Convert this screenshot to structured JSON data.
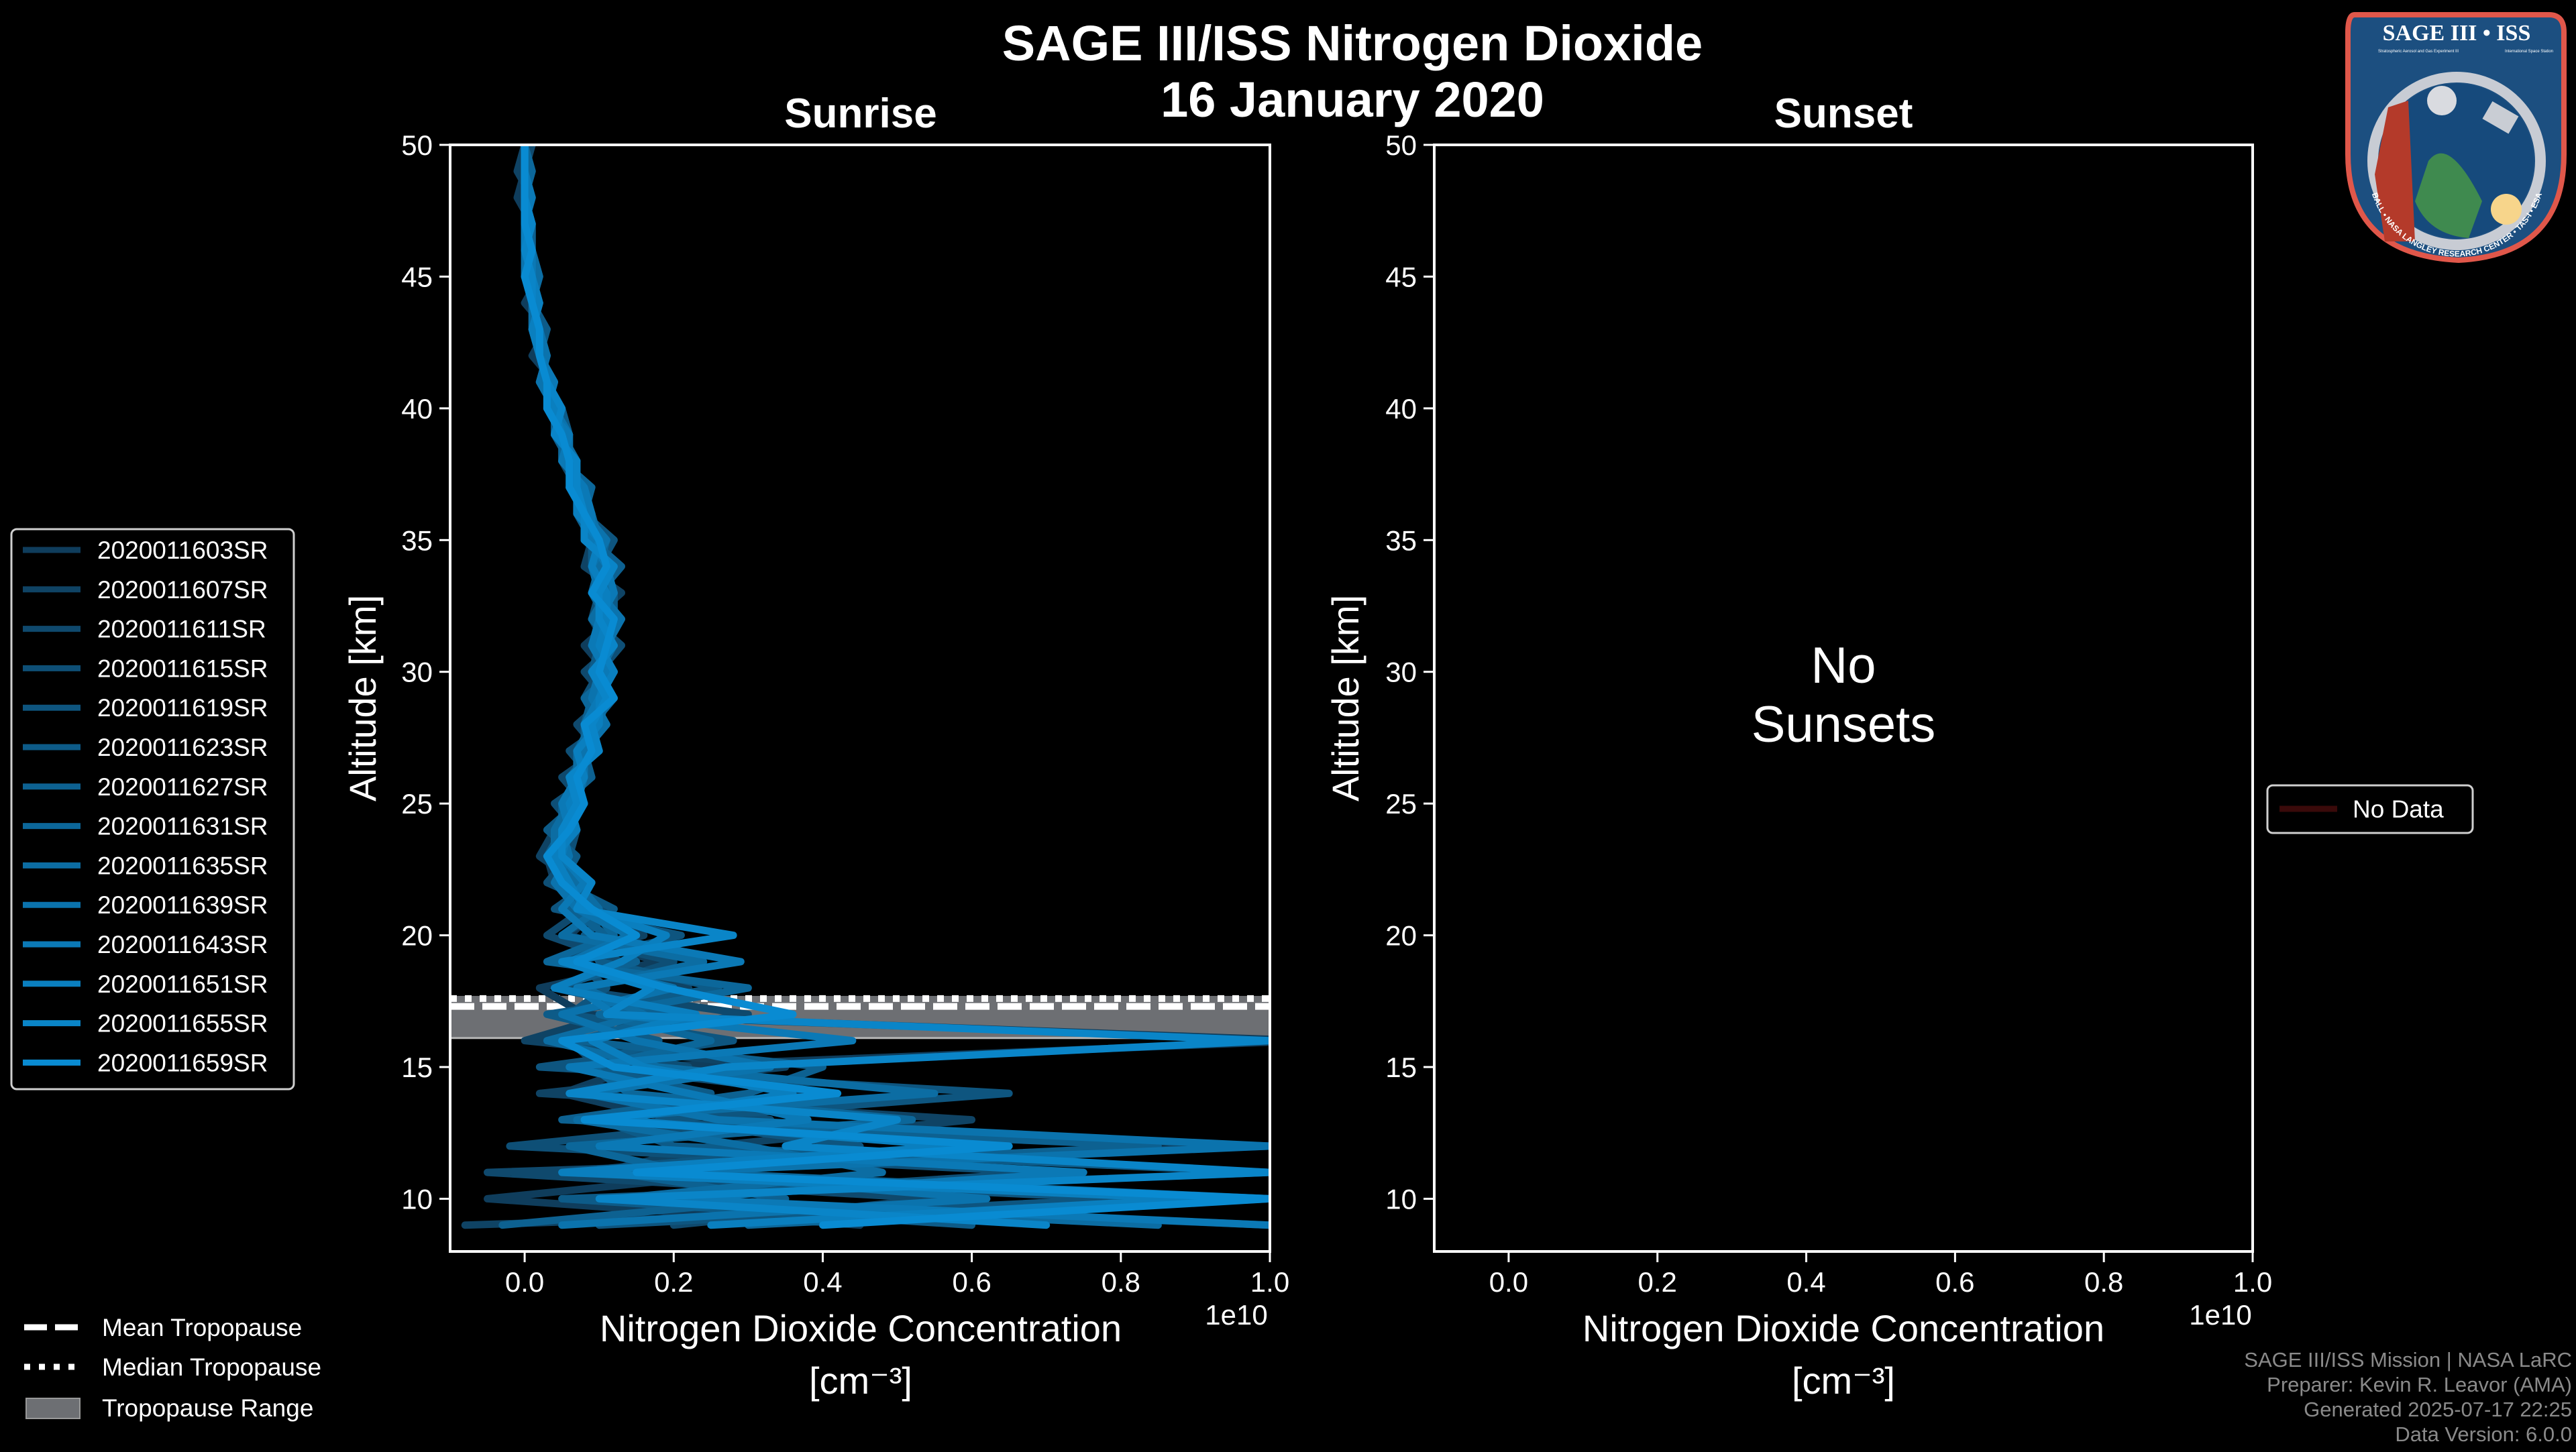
{
  "title": "SAGE III/ISS Nitrogen Dioxide",
  "date": "16 January 2020",
  "logo": {
    "main": "SAGE III • ISS",
    "sub_left": "Stratospheric Aerosol and Gas Experiment III",
    "sub_right": "International Space Station",
    "ring": "BALL • NASA LANGLEY RESEARCH CENTER • TAS-I • ESA"
  },
  "footer": [
    "SAGE III/ISS Mission | NASA LaRC",
    "Preparer: Kevin R. Leavor (AMA)",
    "Generated 2025-07-17 22:25",
    "Data Version: 6.0.0"
  ],
  "tropopause_legend": {
    "mean": "Mean Tropopause",
    "median": "Median Tropopause",
    "range": "Tropopause Range"
  },
  "chart_data": [
    {
      "type": "line",
      "title": "Sunrise",
      "xlabel": "Nitrogen Dioxide Concentration",
      "xlabel_unit": "[cm⁻³]",
      "x_offset_text": "1e10",
      "ylabel": "Altitude [km]",
      "xlim": [
        -0.1,
        1.0
      ],
      "ylim": [
        8,
        50
      ],
      "xticks": [
        "0.0",
        "0.2",
        "0.4",
        "0.6",
        "0.8",
        "1.0"
      ],
      "yticks": [
        "10",
        "15",
        "20",
        "25",
        "30",
        "35",
        "40",
        "45",
        "50"
      ],
      "grid": false,
      "legend_placement": "left-outside",
      "tropopause": {
        "mean_km": 17.3,
        "median_km": 17.6,
        "range_km": [
          16.1,
          17.7
        ]
      },
      "altitude_km": [
        9,
        10,
        11,
        12,
        13,
        14,
        15,
        16,
        17,
        18,
        19,
        20,
        21,
        22,
        23,
        24,
        25,
        26,
        27,
        28,
        29,
        30,
        31,
        32,
        33,
        34,
        35,
        36,
        37,
        38,
        39,
        40,
        41,
        42,
        43,
        44,
        45,
        46,
        47,
        48,
        49,
        50
      ],
      "series": [
        {
          "name": "2020011603SR",
          "color": "#0f3d5c",
          "values": [
            0.45,
            -0.05,
            0.3,
            0.12,
            0.2,
            0.05,
            0.15,
            1.05,
            0.08,
            0.02,
            0.18,
            0.06,
            0.1,
            0.04,
            0.03,
            0.06,
            0.05,
            0.08,
            0.07,
            0.1,
            0.09,
            0.11,
            0.08,
            0.12,
            0.1,
            0.09,
            0.1,
            0.07,
            0.08,
            0.05,
            0.06,
            0.03,
            0.04,
            0.01,
            0.03,
            0.0,
            0.02,
            0.01,
            0.01,
            -0.01,
            0.0,
            0.0
          ]
        },
        {
          "name": "2020011607SR",
          "color": "#0f4364",
          "values": [
            -0.08,
            1.0,
            0.1,
            0.25,
            0.6,
            0.02,
            0.35,
            0.0,
            0.12,
            0.22,
            0.04,
            0.16,
            0.05,
            0.07,
            0.02,
            0.04,
            0.07,
            0.06,
            0.09,
            0.08,
            0.12,
            0.1,
            0.11,
            0.09,
            0.13,
            0.08,
            0.09,
            0.09,
            0.06,
            0.07,
            0.04,
            0.05,
            0.02,
            0.03,
            0.01,
            0.02,
            0.0,
            0.01,
            0.0,
            0.01,
            -0.01,
            0.0
          ]
        },
        {
          "name": "2020011611SR",
          "color": "#0f496d",
          "values": [
            0.2,
            0.55,
            -0.05,
            1.0,
            0.08,
            0.4,
            0.1,
            0.06,
            0.3,
            0.05,
            0.13,
            0.03,
            0.08,
            0.06,
            0.05,
            0.05,
            0.08,
            0.05,
            0.1,
            0.07,
            0.11,
            0.08,
            0.12,
            0.1,
            0.11,
            0.12,
            0.08,
            0.08,
            0.07,
            0.05,
            0.06,
            0.04,
            0.02,
            0.03,
            0.02,
            0.01,
            0.01,
            0.0,
            0.01,
            0.0,
            0.0,
            0.01
          ]
        },
        {
          "name": "2020011615SR",
          "color": "#0e4f76",
          "values": [
            1.0,
            0.15,
            0.7,
            -0.02,
            0.33,
            0.1,
            0.22,
            0.04,
            0.14,
            0.09,
            0.2,
            0.05,
            0.11,
            0.03,
            0.06,
            0.07,
            0.04,
            0.09,
            0.06,
            0.11,
            0.08,
            0.1,
            0.13,
            0.09,
            0.1,
            0.11,
            0.1,
            0.07,
            0.08,
            0.06,
            0.05,
            0.04,
            0.03,
            0.02,
            0.02,
            0.01,
            0.0,
            0.01,
            0.0,
            0.0,
            0.01,
            0.0
          ]
        },
        {
          "name": "2020011619SR",
          "color": "#0e557f",
          "values": [
            0.1,
            0.8,
            0.05,
            0.45,
            0.18,
            0.65,
            0.02,
            0.28,
            0.06,
            0.11,
            0.07,
            0.21,
            0.04,
            0.09,
            0.04,
            0.06,
            0.06,
            0.07,
            0.08,
            0.09,
            0.1,
            0.12,
            0.09,
            0.11,
            0.09,
            0.1,
            0.12,
            0.08,
            0.06,
            0.07,
            0.05,
            0.03,
            0.04,
            0.02,
            0.01,
            0.02,
            0.01,
            0.0,
            0.0,
            0.01,
            0.0,
            0.0
          ]
        },
        {
          "name": "2020011623SR",
          "color": "#0d5b88",
          "values": [
            0.6,
            0.05,
            1.0,
            0.2,
            0.1,
            0.25,
            0.08,
            0.18,
            0.03,
            0.26,
            0.1,
            0.08,
            0.12,
            0.05,
            0.07,
            0.03,
            0.07,
            0.08,
            0.07,
            0.1,
            0.11,
            0.09,
            0.1,
            0.12,
            0.12,
            0.09,
            0.09,
            0.09,
            0.07,
            0.06,
            0.06,
            0.05,
            0.03,
            0.02,
            0.03,
            0.01,
            0.01,
            0.01,
            0.0,
            0.0,
            0.0,
            0.0
          ]
        },
        {
          "name": "2020011627SR",
          "color": "#0d6191",
          "values": [
            -0.03,
            0.35,
            0.12,
            0.85,
            0.05,
            0.3,
            0.4,
            0.07,
            0.2,
            0.04,
            0.15,
            0.11,
            0.06,
            0.08,
            0.03,
            0.05,
            0.05,
            0.09,
            0.08,
            0.08,
            0.09,
            0.11,
            0.11,
            0.1,
            0.1,
            0.13,
            0.09,
            0.07,
            0.07,
            0.06,
            0.04,
            0.04,
            0.02,
            0.03,
            0.01,
            0.02,
            0.0,
            0.01,
            0.01,
            0.0,
            0.0,
            0.0
          ]
        },
        {
          "name": "2020011631SR",
          "color": "#0c679a",
          "values": [
            0.3,
            1.0,
            0.22,
            0.06,
            0.52,
            0.14,
            0.09,
            0.25,
            0.1,
            0.3,
            0.03,
            0.12,
            0.09,
            0.05,
            0.05,
            0.06,
            0.08,
            0.06,
            0.09,
            0.1,
            0.08,
            0.12,
            0.1,
            0.11,
            0.09,
            0.1,
            0.11,
            0.08,
            0.09,
            0.05,
            0.05,
            0.03,
            0.03,
            0.02,
            0.02,
            0.01,
            0.01,
            0.0,
            0.0,
            0.0,
            0.01,
            0.0
          ]
        },
        {
          "name": "2020011635SR",
          "color": "#0c6da3",
          "values": [
            0.85,
            0.12,
            0.48,
            0.3,
            0.07,
            0.55,
            0.18,
            0.03,
            0.16,
            0.08,
            0.24,
            0.05,
            0.1,
            0.07,
            0.04,
            0.04,
            0.06,
            0.07,
            0.07,
            0.09,
            0.12,
            0.1,
            0.12,
            0.09,
            0.11,
            0.1,
            0.1,
            0.09,
            0.06,
            0.07,
            0.05,
            0.04,
            0.03,
            0.02,
            0.01,
            0.01,
            0.02,
            0.01,
            0.0,
            0.0,
            0.0,
            0.0
          ]
        },
        {
          "name": "2020011639SR",
          "color": "#0b73ad",
          "values": [
            0.05,
            0.62,
            0.18,
            1.0,
            0.26,
            0.08,
            0.33,
            0.15,
            0.05,
            0.2,
            0.06,
            0.14,
            0.07,
            0.04,
            0.06,
            0.05,
            0.07,
            0.08,
            0.08,
            0.11,
            0.09,
            0.1,
            0.11,
            0.13,
            0.1,
            0.09,
            0.11,
            0.08,
            0.07,
            0.06,
            0.06,
            0.04,
            0.02,
            0.03,
            0.02,
            0.01,
            0.0,
            0.0,
            0.01,
            0.0,
            0.0,
            0.0
          ]
        },
        {
          "name": "2020011643SR",
          "color": "#0b79b6",
          "values": [
            1.0,
            0.2,
            0.75,
            0.1,
            0.38,
            0.22,
            0.06,
            0.44,
            0.12,
            0.07,
            0.29,
            0.09,
            0.05,
            0.08,
            0.05,
            0.06,
            0.05,
            0.07,
            0.09,
            0.08,
            0.1,
            0.11,
            0.09,
            0.1,
            0.12,
            0.11,
            0.09,
            0.09,
            0.08,
            0.05,
            0.06,
            0.03,
            0.04,
            0.02,
            0.02,
            0.01,
            0.01,
            0.01,
            0.0,
            0.01,
            0.0,
            0.0
          ]
        },
        {
          "name": "2020011651SR",
          "color": "#0a7fbf",
          "values": [
            0.25,
            0.9,
            0.05,
            0.58,
            0.12,
            0.36,
            0.16,
            0.09,
            0.23,
            0.04,
            0.13,
            0.19,
            0.08,
            0.06,
            0.04,
            0.07,
            0.06,
            0.08,
            0.07,
            0.1,
            0.1,
            0.12,
            0.1,
            0.11,
            0.11,
            0.09,
            0.1,
            0.07,
            0.07,
            0.06,
            0.05,
            0.04,
            0.03,
            0.02,
            0.01,
            0.02,
            0.01,
            0.0,
            0.0,
            0.0,
            0.0,
            0.0
          ]
        },
        {
          "name": "2020011655SR",
          "color": "#0a85c8",
          "values": [
            0.7,
            0.1,
            1.0,
            0.35,
            0.5,
            0.06,
            0.27,
            1.0,
            0.11,
            0.17,
            0.05,
            0.28,
            0.07,
            0.09,
            0.05,
            0.05,
            0.07,
            0.06,
            0.1,
            0.09,
            0.11,
            0.09,
            0.12,
            0.1,
            0.1,
            0.12,
            0.08,
            0.08,
            0.07,
            0.07,
            0.04,
            0.05,
            0.03,
            0.02,
            0.02,
            0.01,
            0.01,
            0.0,
            0.01,
            0.0,
            0.0,
            0.0
          ]
        },
        {
          "name": "2020011659SR",
          "color": "#098bd2",
          "values": [
            0.4,
            1.0,
            0.15,
            0.65,
            0.08,
            0.42,
            0.12,
            0.05,
            0.36,
            0.19,
            0.07,
            0.15,
            0.09,
            0.05,
            0.03,
            0.06,
            0.08,
            0.07,
            0.09,
            0.08,
            0.12,
            0.1,
            0.11,
            0.12,
            0.09,
            0.11,
            0.1,
            0.08,
            0.06,
            0.06,
            0.05,
            0.03,
            0.03,
            0.02,
            0.02,
            0.01,
            0.0,
            0.01,
            0.0,
            0.0,
            0.0,
            0.0
          ]
        }
      ]
    },
    {
      "type": "line",
      "title": "Sunset",
      "xlabel": "Nitrogen Dioxide Concentration",
      "xlabel_unit": "[cm⁻³]",
      "x_offset_text": "1e10",
      "ylabel": "Altitude [km]",
      "xlim": [
        -0.1,
        1.0
      ],
      "ylim": [
        8,
        50
      ],
      "xticks": [
        "0.0",
        "0.2",
        "0.4",
        "0.6",
        "0.8",
        "1.0"
      ],
      "yticks": [
        "10",
        "15",
        "20",
        "25",
        "30",
        "35",
        "40",
        "45",
        "50"
      ],
      "grid": false,
      "annotation": [
        "No",
        "Sunsets"
      ],
      "legend_placement": "right-outside",
      "series": [
        {
          "name": "No Data",
          "color": "#3a0a0a",
          "values": []
        }
      ]
    }
  ]
}
